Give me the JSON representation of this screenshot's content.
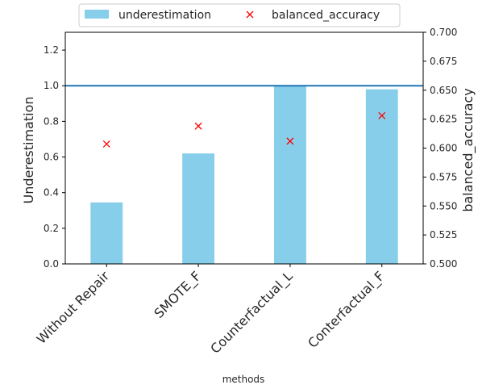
{
  "chart_data": {
    "type": "bar",
    "xlabel": "methods",
    "ylabel_left": "Underestimation",
    "ylabel_right": "balanced_accuracy",
    "categories": [
      "Without Repair",
      "SMOTE_F",
      "Counterfactual_L",
      "Conterfactual_F"
    ],
    "series": [
      {
        "name": "underestimation",
        "kind": "bar",
        "axis": "left",
        "color": "#87ceeb",
        "values": [
          0.345,
          0.62,
          1.0,
          0.98
        ]
      },
      {
        "name": "balanced_accuracy",
        "kind": "scatter",
        "marker": "x",
        "axis": "right",
        "color": "#ff0000",
        "values": [
          0.6035,
          0.619,
          0.606,
          0.628
        ]
      }
    ],
    "reference_line": {
      "axis": "left",
      "value": 1.0,
      "color": "#1f77b4"
    },
    "left_axis": {
      "ylim": [
        0,
        1.3
      ],
      "ticks": [
        0.0,
        0.2,
        0.4,
        0.6,
        0.8,
        1.0,
        1.2
      ],
      "tick_labels": [
        "0.0",
        "0.2",
        "0.4",
        "0.6",
        "0.8",
        "1.0",
        "1.2"
      ]
    },
    "right_axis": {
      "ylim": [
        0.5,
        0.7
      ],
      "ticks": [
        0.5,
        0.525,
        0.55,
        0.575,
        0.6,
        0.625,
        0.65,
        0.675,
        0.7
      ],
      "tick_labels": [
        "0.500",
        "0.525",
        "0.550",
        "0.575",
        "0.600",
        "0.625",
        "0.650",
        "0.675",
        "0.700"
      ]
    },
    "legend": {
      "placement": "top-center-outside",
      "entries": [
        "underestimation",
        "balanced_accuracy"
      ]
    },
    "grid": false
  }
}
